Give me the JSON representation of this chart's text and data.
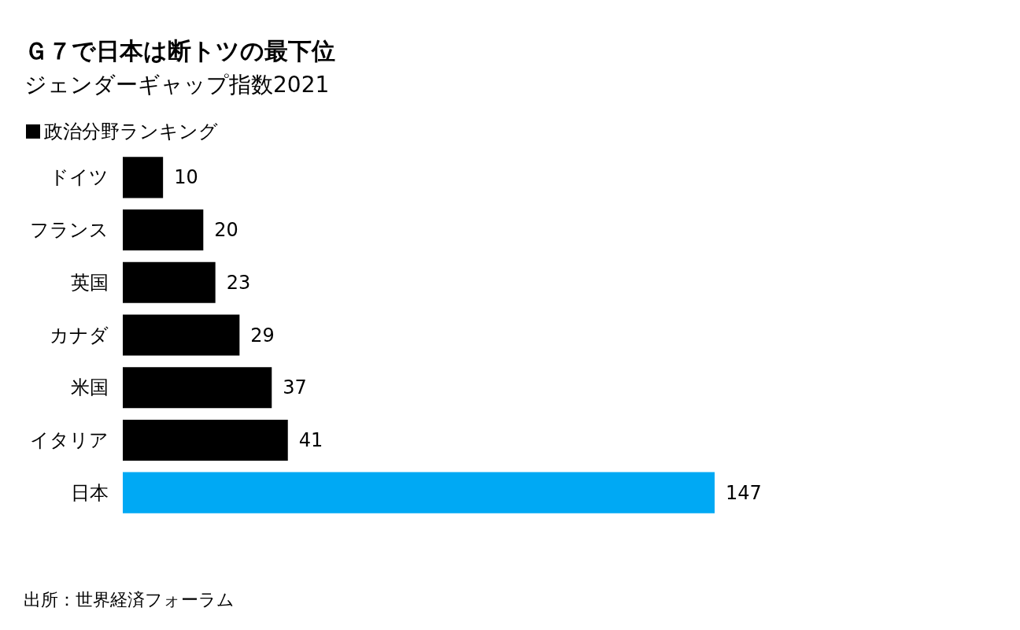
{
  "chart_data": {
    "type": "bar",
    "orientation": "horizontal",
    "title": "Ｇ７で日本は断トツの最下位",
    "subtitle": "ジェンダーギャップ指数2021",
    "categories": [
      "ドイツ",
      "フランス",
      "英国",
      "カナダ",
      "米国",
      "イタリア",
      "日本"
    ],
    "series": [
      {
        "name": "政治分野ランキング",
        "color": "#000000",
        "colors": [
          "#000000",
          "#000000",
          "#000000",
          "#000000",
          "#000000",
          "#000000",
          "#00a9f4"
        ],
        "values": [
          10,
          20,
          23,
          29,
          37,
          41,
          147
        ]
      }
    ],
    "data_labels": true,
    "legend": "top left",
    "tick_labels": "y",
    "annotations": [
      "出所：世界経済フォーラム"
    ]
  }
}
